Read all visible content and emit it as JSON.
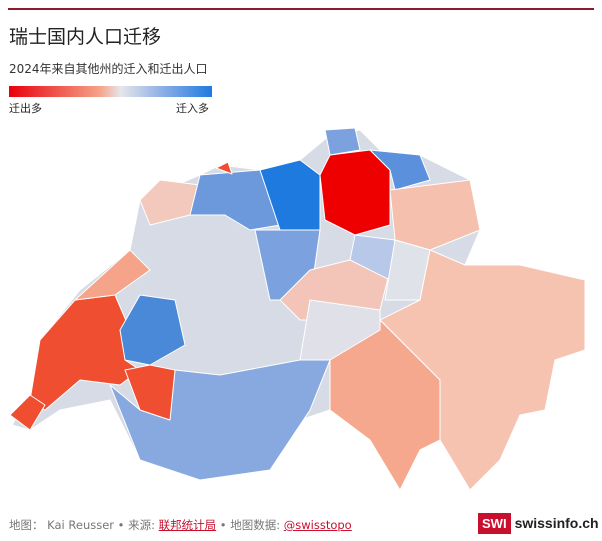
{
  "header": {
    "title": "瑞士国内人口迁移",
    "subtitle": "2024年来自其他州的迁入和迁出人口"
  },
  "legend": {
    "left": "迁出多",
    "right": "迁入多"
  },
  "footer": {
    "credit": "地图： Kai Reusser • 来源: ",
    "source_link": "联邦统计局",
    "mapdata": " • 地图数据: ",
    "mapdata_link": "@swisstopo"
  },
  "logo": {
    "badge": "SWI",
    "name": "swissinfo.ch"
  }
}
